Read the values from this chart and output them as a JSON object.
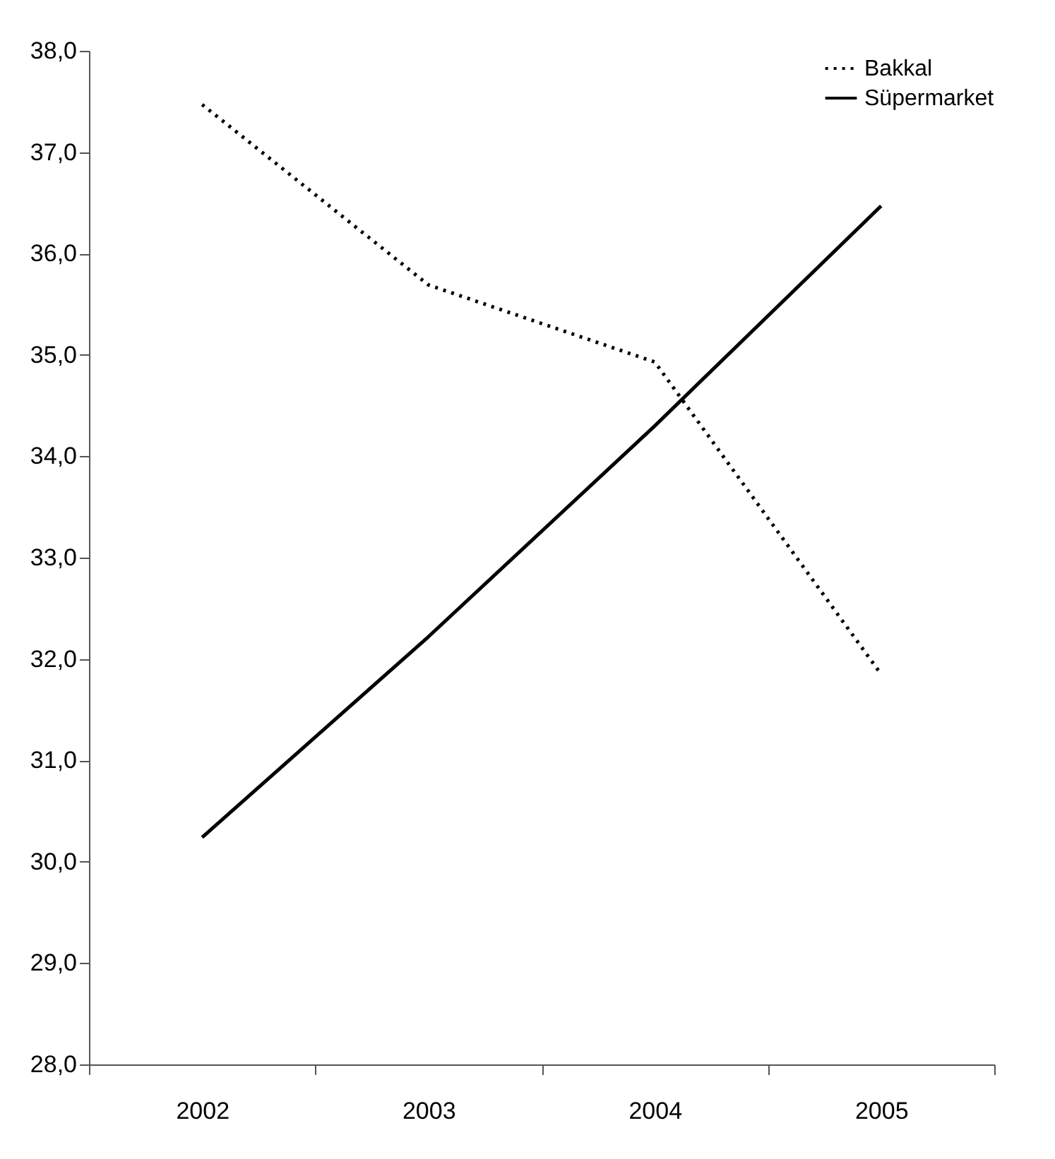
{
  "chart_data": {
    "type": "line",
    "categories": [
      "2002",
      "2003",
      "2004",
      "2005"
    ],
    "series": [
      {
        "name": "Bakkal",
        "color": "#000000",
        "line_style": "dotted",
        "values": [
          37.47,
          35.69,
          34.93,
          31.85
        ]
      },
      {
        "name": "Süpermarket",
        "color": "#000000",
        "line_style": "solid",
        "values": [
          30.24,
          32.22,
          34.3,
          36.47
        ]
      }
    ],
    "ylim": [
      28,
      38
    ],
    "yticks": [
      {
        "value": 28,
        "label": "28,0"
      },
      {
        "value": 29,
        "label": "29,0"
      },
      {
        "value": 30,
        "label": "30,0"
      },
      {
        "value": 31,
        "label": "31,0"
      },
      {
        "value": 32,
        "label": "32,0"
      },
      {
        "value": 33,
        "label": "33,0"
      },
      {
        "value": 34,
        "label": "34,0"
      },
      {
        "value": 35,
        "label": "35,0"
      },
      {
        "value": 36,
        "label": "36,0"
      },
      {
        "value": 37,
        "label": "37,0"
      },
      {
        "value": 38,
        "label": "38,0"
      }
    ],
    "grid": false,
    "legend": "top right",
    "marker": "none"
  }
}
